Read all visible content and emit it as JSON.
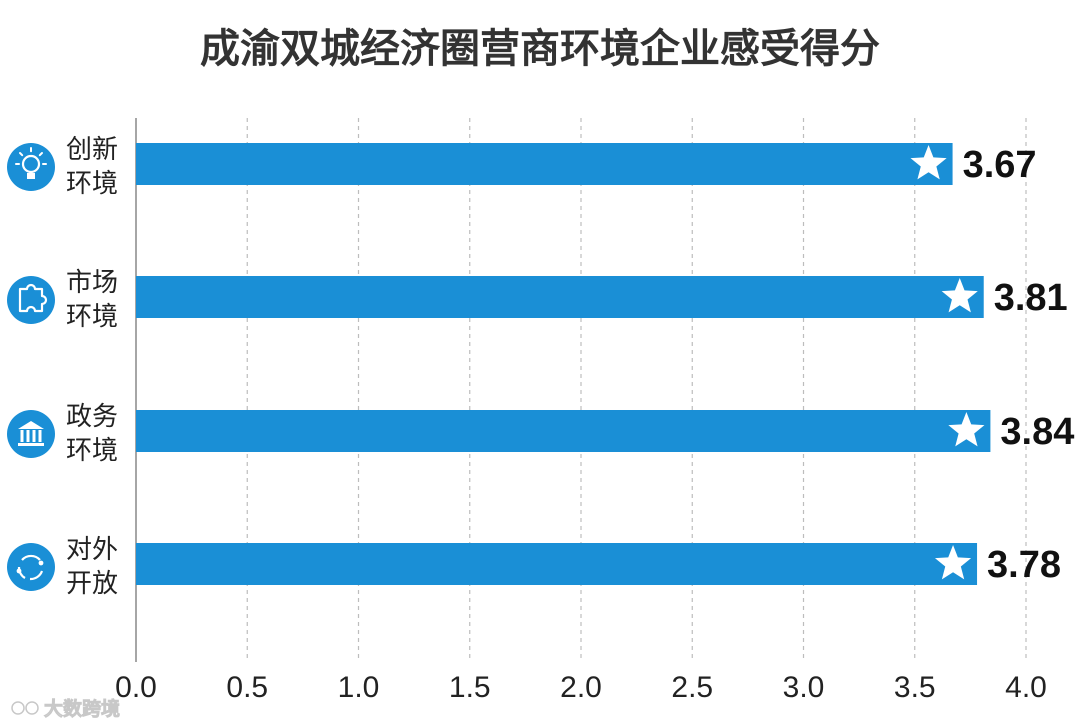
{
  "chart_data": {
    "type": "bar",
    "orientation": "horizontal",
    "title": "成渝双城经济圈营商环境企业感受得分",
    "categories": [
      {
        "line1": "创新",
        "line2": "环境",
        "icon": "lightbulb-icon"
      },
      {
        "line1": "市场",
        "line2": "环境",
        "icon": "puzzle-icon"
      },
      {
        "line1": "政务",
        "line2": "环境",
        "icon": "government-building-icon"
      },
      {
        "line1": "对外",
        "line2": "开放",
        "icon": "circular-arrows-icon"
      }
    ],
    "values": [
      3.67,
      3.81,
      3.84,
      3.78
    ],
    "value_labels": [
      "3.67",
      "3.81",
      "3.84",
      "3.78"
    ],
    "xlim": [
      0,
      4
    ],
    "x_ticks": [
      "0.0",
      "0.5",
      "1.0",
      "1.5",
      "2.0",
      "2.5",
      "3.0",
      "3.5",
      "4.0"
    ],
    "grid": "vertical dashed",
    "legend": "none",
    "colors": {
      "bar": "#1a8fd6",
      "icon_circle": "#1a8fd6",
      "star": "#ffffff",
      "grid": "#bdbdbd",
      "axis": "#888888"
    }
  },
  "watermark": {
    "text": "大数跨境",
    "icon": "sun-logo-icon"
  }
}
